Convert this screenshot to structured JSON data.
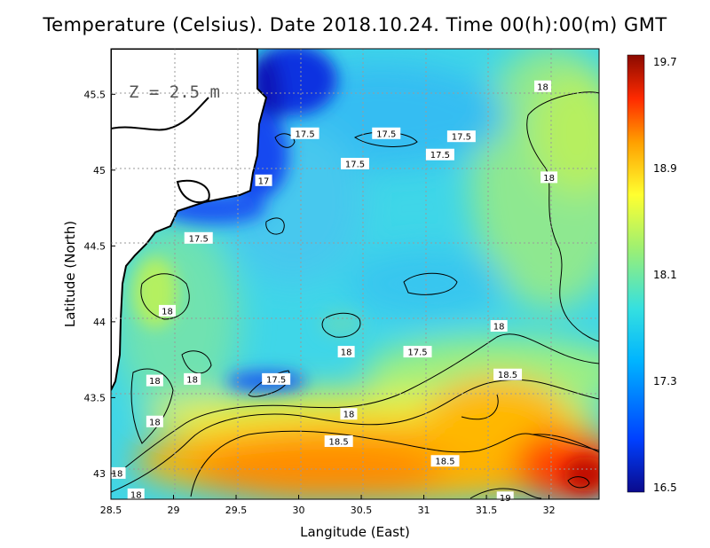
{
  "title": "Temperature (Celsius). Date 2018.10.24. Time 00(h):00(m) GMT",
  "depth_label": "Z = 2.5 m",
  "chart_data": {
    "type": "heatmap",
    "title": "Temperature (Celsius). Date 2018.10.24. Time 00(h):00(m) GMT",
    "xlabel": "Langitude (East)",
    "ylabel": "Latitude (North)",
    "xlim": [
      28.5,
      32.4
    ],
    "ylim": [
      42.83,
      45.8
    ],
    "x_ticks": [
      "28.5",
      "29",
      "29.5",
      "30",
      "30.5",
      "31",
      "31.5",
      "32"
    ],
    "y_ticks": [
      "43",
      "43.5",
      "44",
      "44.5",
      "45",
      "45.5"
    ],
    "grid": true,
    "colorbar": {
      "min": 16.5,
      "max": 19.7,
      "tick_labels": [
        "19.7",
        "18.9",
        "18.1",
        "17.3",
        "16.5"
      ],
      "colors": [
        "#0a0a8c",
        "#0040ff",
        "#00b4ff",
        "#35e0e0",
        "#a0f070",
        "#ffff30",
        "#ffa000",
        "#ff2a00",
        "#8b0a00"
      ]
    },
    "contour_labels": [
      {
        "text": "18",
        "x": 31.95,
        "y": 45.55
      },
      {
        "text": "17.5",
        "x": 30.05,
        "y": 45.24
      },
      {
        "text": "17.5",
        "x": 30.7,
        "y": 45.24
      },
      {
        "text": "17.5",
        "x": 31.3,
        "y": 45.22
      },
      {
        "text": "17.5",
        "x": 30.45,
        "y": 45.04
      },
      {
        "text": "17.5",
        "x": 31.13,
        "y": 45.1
      },
      {
        "text": "18",
        "x": 32.0,
        "y": 44.95
      },
      {
        "text": "17",
        "x": 29.72,
        "y": 44.93
      },
      {
        "text": "17.5",
        "x": 29.2,
        "y": 44.55
      },
      {
        "text": "18",
        "x": 28.95,
        "y": 44.07
      },
      {
        "text": "18",
        "x": 31.6,
        "y": 43.97
      },
      {
        "text": "18",
        "x": 30.38,
        "y": 43.8
      },
      {
        "text": "17.5",
        "x": 30.95,
        "y": 43.8
      },
      {
        "text": "17.5",
        "x": 29.82,
        "y": 43.62
      },
      {
        "text": "18.5",
        "x": 31.67,
        "y": 43.65
      },
      {
        "text": "18",
        "x": 28.85,
        "y": 43.61
      },
      {
        "text": "18",
        "x": 29.15,
        "y": 43.62
      },
      {
        "text": "18",
        "x": 30.4,
        "y": 43.39
      },
      {
        "text": "18",
        "x": 28.85,
        "y": 43.34
      },
      {
        "text": "18.5",
        "x": 30.32,
        "y": 43.21
      },
      {
        "text": "18.5",
        "x": 31.17,
        "y": 43.08
      },
      {
        "text": "18",
        "x": 28.55,
        "y": 43.0
      },
      {
        "text": "18",
        "x": 28.7,
        "y": 42.86
      },
      {
        "text": "19",
        "x": 31.65,
        "y": 42.84
      }
    ]
  }
}
